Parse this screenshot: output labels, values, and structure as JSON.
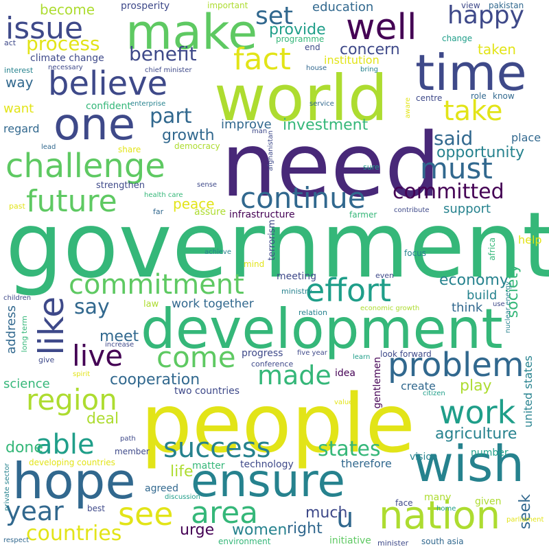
{
  "words": [
    {
      "text": "government",
      "color": "#35b779"
    },
    {
      "text": "people",
      "color": "#e2e418"
    },
    {
      "text": "need",
      "color": "#482878"
    },
    {
      "text": "development",
      "color": "#35b779"
    },
    {
      "text": "world",
      "color": "#addc30"
    },
    {
      "text": "make",
      "color": "#5ec962"
    },
    {
      "text": "time",
      "color": "#3e4989"
    },
    {
      "text": "one",
      "color": "#3e4989"
    },
    {
      "text": "challenge",
      "color": "#5ec962"
    },
    {
      "text": "hope",
      "color": "#31688e"
    },
    {
      "text": "ensure",
      "color": "#26828e"
    },
    {
      "text": "wish",
      "color": "#26828e"
    },
    {
      "text": "nation",
      "color": "#addc30"
    },
    {
      "text": "well",
      "color": "#440154"
    },
    {
      "text": "believe",
      "color": "#3e4989"
    },
    {
      "text": "issue",
      "color": "#3e4989"
    },
    {
      "text": "future",
      "color": "#5ec962"
    },
    {
      "text": "continue",
      "color": "#31688e"
    },
    {
      "text": "effort",
      "color": "#1f9e89"
    },
    {
      "text": "like",
      "color": "#3e4989"
    },
    {
      "text": "problem",
      "color": "#31688e"
    },
    {
      "text": "commitment",
      "color": "#5ec962"
    },
    {
      "text": "region",
      "color": "#addc30"
    },
    {
      "text": "work",
      "color": "#1f9e89"
    },
    {
      "text": "area",
      "color": "#35b779"
    },
    {
      "text": "see",
      "color": "#e2e418"
    },
    {
      "text": "year",
      "color": "#31688e"
    },
    {
      "text": "able",
      "color": "#1f9e89"
    },
    {
      "text": "come",
      "color": "#5ec962"
    },
    {
      "text": "made",
      "color": "#35b779"
    },
    {
      "text": "live",
      "color": "#440154"
    },
    {
      "text": "success",
      "color": "#26828e"
    },
    {
      "text": "must",
      "color": "#31688e"
    },
    {
      "text": "take",
      "color": "#e2e418"
    },
    {
      "text": "fact",
      "color": "#e2e418"
    },
    {
      "text": "happy",
      "color": "#3e4989"
    },
    {
      "text": "set",
      "color": "#31688e"
    },
    {
      "text": "u",
      "color": "#31688e"
    },
    {
      "text": "countries",
      "color": "#e2e418"
    },
    {
      "text": "committed",
      "color": "#440154"
    },
    {
      "text": "states",
      "color": "#35b779"
    },
    {
      "text": "benefit",
      "color": "#3e4989"
    },
    {
      "text": "process",
      "color": "#e2e418"
    },
    {
      "text": "part",
      "color": "#31688e"
    },
    {
      "text": "said",
      "color": "#31688e"
    },
    {
      "text": "say",
      "color": "#31688e"
    },
    {
      "text": "economy",
      "color": "#26828e"
    },
    {
      "text": "agriculture",
      "color": "#26828e"
    },
    {
      "text": "cooperation",
      "color": "#31688e"
    },
    {
      "text": "play",
      "color": "#addc30"
    },
    {
      "text": "concern",
      "color": "#3e4989"
    },
    {
      "text": "provide",
      "color": "#1f9e89"
    },
    {
      "text": "opportunity",
      "color": "#26828e"
    },
    {
      "text": "investment",
      "color": "#35b779"
    },
    {
      "text": "growth",
      "color": "#31688e"
    },
    {
      "text": "society",
      "color": "#35b779"
    },
    {
      "text": "seek",
      "color": "#31688e"
    },
    {
      "text": "women",
      "color": "#26828e"
    },
    {
      "text": "right",
      "color": "#31688e"
    },
    {
      "text": "urge",
      "color": "#440154"
    },
    {
      "text": "much",
      "color": "#3e4989"
    },
    {
      "text": "peace",
      "color": "#e2e418"
    },
    {
      "text": "deal",
      "color": "#addc30"
    },
    {
      "text": "done",
      "color": "#35b779"
    },
    {
      "text": "life",
      "color": "#addc30"
    },
    {
      "text": "meet",
      "color": "#31688e"
    },
    {
      "text": "taken",
      "color": "#e2e418"
    },
    {
      "text": "education",
      "color": "#31688e"
    },
    {
      "text": "become",
      "color": "#addc30"
    },
    {
      "text": "prosperity",
      "color": "#3e4989"
    },
    {
      "text": "way",
      "color": "#31688e"
    },
    {
      "text": "improve",
      "color": "#31688e"
    },
    {
      "text": "support",
      "color": "#26828e"
    },
    {
      "text": "address",
      "color": "#31688e"
    },
    {
      "text": "science",
      "color": "#35b779"
    },
    {
      "text": "work together",
      "color": "#31688e"
    },
    {
      "text": "institution",
      "color": "#e2e418"
    },
    {
      "text": "want",
      "color": "#e2e418"
    },
    {
      "text": "regard",
      "color": "#31688e"
    },
    {
      "text": "confident",
      "color": "#35b779"
    },
    {
      "text": "climate change",
      "color": "#3e4989"
    },
    {
      "text": "build",
      "color": "#26828e"
    },
    {
      "text": "think",
      "color": "#31688e"
    },
    {
      "text": "place",
      "color": "#31688e"
    },
    {
      "text": "help",
      "color": "#e2e418"
    },
    {
      "text": "create",
      "color": "#31688e"
    },
    {
      "text": "united states",
      "color": "#26828e"
    },
    {
      "text": "infrastructure",
      "color": "#440154"
    },
    {
      "text": "strengthen",
      "color": "#3e4989"
    },
    {
      "text": "assure",
      "color": "#addc30"
    },
    {
      "text": "meeting",
      "color": "#3e4989"
    },
    {
      "text": "therefore",
      "color": "#31688e"
    },
    {
      "text": "technology",
      "color": "#3e4989"
    },
    {
      "text": "matter",
      "color": "#35b779"
    },
    {
      "text": "agreed",
      "color": "#31688e"
    },
    {
      "text": "vision",
      "color": "#26828e"
    },
    {
      "text": "number",
      "color": "#1f9e89"
    },
    {
      "text": "many",
      "color": "#addc30"
    },
    {
      "text": "given",
      "color": "#addc30"
    },
    {
      "text": "progress",
      "color": "#3e4989"
    },
    {
      "text": "idea",
      "color": "#440154"
    },
    {
      "text": "two countries",
      "color": "#3e4989"
    },
    {
      "text": "gentlemen",
      "color": "#440154"
    },
    {
      "text": "view",
      "color": "#3e4989"
    },
    {
      "text": "pakistan",
      "color": "#31688e"
    },
    {
      "text": "important",
      "color": "#addc30"
    },
    {
      "text": "programme",
      "color": "#35b779"
    },
    {
      "text": "end",
      "color": "#3e4989"
    },
    {
      "text": "change",
      "color": "#1f9e89"
    },
    {
      "text": "act",
      "color": "#3e4989"
    },
    {
      "text": "interest",
      "color": "#26828e"
    },
    {
      "text": "necessary",
      "color": "#3e4989"
    },
    {
      "text": "chief minister",
      "color": "#3e4989"
    },
    {
      "text": "house",
      "color": "#31688e"
    },
    {
      "text": "bring",
      "color": "#26828e"
    },
    {
      "text": "role",
      "color": "#31688e"
    },
    {
      "text": "know",
      "color": "#31688e"
    },
    {
      "text": "aware",
      "color": "#e2e418"
    },
    {
      "text": "centre",
      "color": "#3e4989"
    },
    {
      "text": "enterprise",
      "color": "#26828e"
    },
    {
      "text": "service",
      "color": "#31688e"
    },
    {
      "text": "lead",
      "color": "#31688e"
    },
    {
      "text": "share",
      "color": "#e2e418"
    },
    {
      "text": "democracy",
      "color": "#addc30"
    },
    {
      "text": "man",
      "color": "#3e4989"
    },
    {
      "text": "afghanistan",
      "color": "#3e4989"
    },
    {
      "text": "sure",
      "color": "#1f9e89"
    },
    {
      "text": "health care",
      "color": "#35b779"
    },
    {
      "text": "sense",
      "color": "#3e4989"
    },
    {
      "text": "past",
      "color": "#e2e418"
    },
    {
      "text": "far",
      "color": "#31688e"
    },
    {
      "text": "farmer",
      "color": "#35b779"
    },
    {
      "text": "contribute",
      "color": "#3e4989"
    },
    {
      "text": "achieve",
      "color": "#26828e"
    },
    {
      "text": "terrorism",
      "color": "#3e4989"
    },
    {
      "text": "mind",
      "color": "#e2e418"
    },
    {
      "text": "focus",
      "color": "#26828e"
    },
    {
      "text": "africa",
      "color": "#35b779"
    },
    {
      "text": "even",
      "color": "#3e4989"
    },
    {
      "text": "children",
      "color": "#3e4989"
    },
    {
      "text": "law",
      "color": "#addc30"
    },
    {
      "text": "ministry",
      "color": "#26828e"
    },
    {
      "text": "relation",
      "color": "#26828e"
    },
    {
      "text": "economic growth",
      "color": "#addc30"
    },
    {
      "text": "use",
      "color": "#3e4989"
    },
    {
      "text": "nuclear energy",
      "color": "#26828e"
    },
    {
      "text": "long term",
      "color": "#35b779"
    },
    {
      "text": "increase",
      "color": "#3e4989"
    },
    {
      "text": "give",
      "color": "#3e4989"
    },
    {
      "text": "five year",
      "color": "#3e4989"
    },
    {
      "text": "conference",
      "color": "#3e4989"
    },
    {
      "text": "look forward",
      "color": "#3e4989"
    },
    {
      "text": "learn",
      "color": "#1f9e89"
    },
    {
      "text": "spirit",
      "color": "#e2e418"
    },
    {
      "text": "citizen",
      "color": "#1f9e89"
    },
    {
      "text": "value",
      "color": "#e2e418"
    },
    {
      "text": "path",
      "color": "#3e4989"
    },
    {
      "text": "member",
      "color": "#3e4989"
    },
    {
      "text": "developing countries",
      "color": "#e2e418"
    },
    {
      "text": "private sector",
      "color": "#26828e"
    },
    {
      "text": "discussion",
      "color": "#1f9e89"
    },
    {
      "text": "best",
      "color": "#3e4989"
    },
    {
      "text": "face",
      "color": "#3e4989"
    },
    {
      "text": "home",
      "color": "#1f9e89"
    },
    {
      "text": "parliament",
      "color": "#e2e418"
    },
    {
      "text": "respect",
      "color": "#31688e"
    },
    {
      "text": "environment",
      "color": "#35b779"
    },
    {
      "text": "initiative",
      "color": "#5ec962"
    },
    {
      "text": "minister",
      "color": "#3e4989"
    },
    {
      "text": "south asia",
      "color": "#31688e"
    }
  ]
}
